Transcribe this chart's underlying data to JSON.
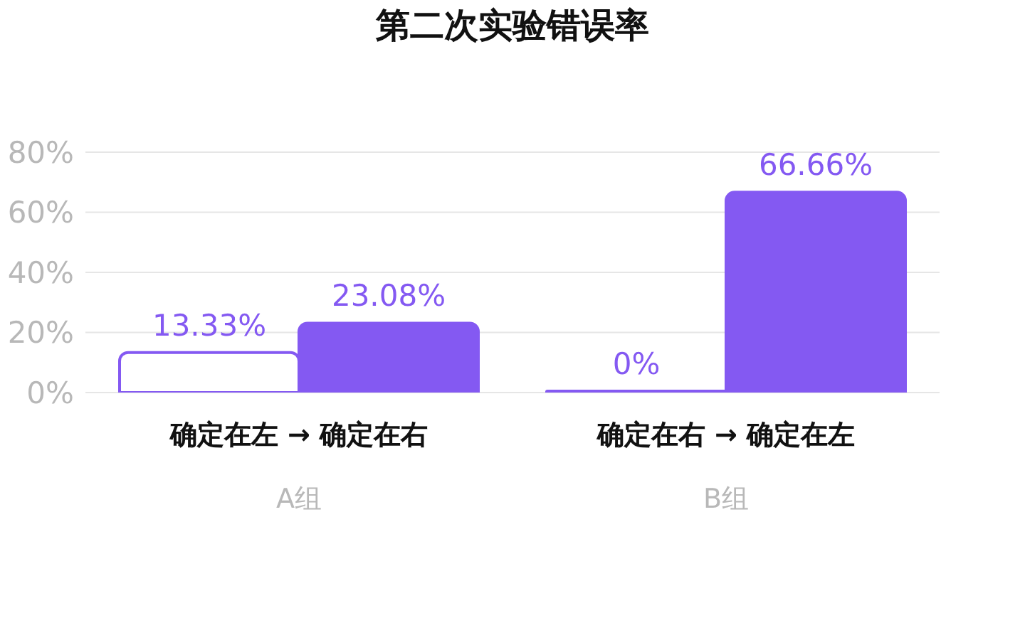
{
  "chart_data": {
    "type": "bar",
    "title": "第二次实验错误率",
    "categories": [
      "确定在左 → 确定在右",
      "确定在右 → 确定在左"
    ],
    "series": [
      {
        "color": "#8459f2",
        "values": [
          13.33,
          0
        ],
        "value_labels": [
          "13.33%",
          "0%"
        ]
      },
      {
        "color": "#8459f2",
        "values": [
          23.08,
          66.66
        ],
        "value_labels": [
          "23.08%",
          "66.66%"
        ]
      }
    ],
    "ylim": [
      0,
      80
    ],
    "yticks": [
      {
        "value": 0,
        "label": "0%"
      },
      {
        "value": 20,
        "label": "20%"
      },
      {
        "value": 40,
        "label": "40%"
      },
      {
        "value": 60,
        "label": "60%"
      },
      {
        "value": 80,
        "label": "80%"
      }
    ],
    "grid": "y",
    "annotations": [
      "A组",
      "B组"
    ]
  }
}
